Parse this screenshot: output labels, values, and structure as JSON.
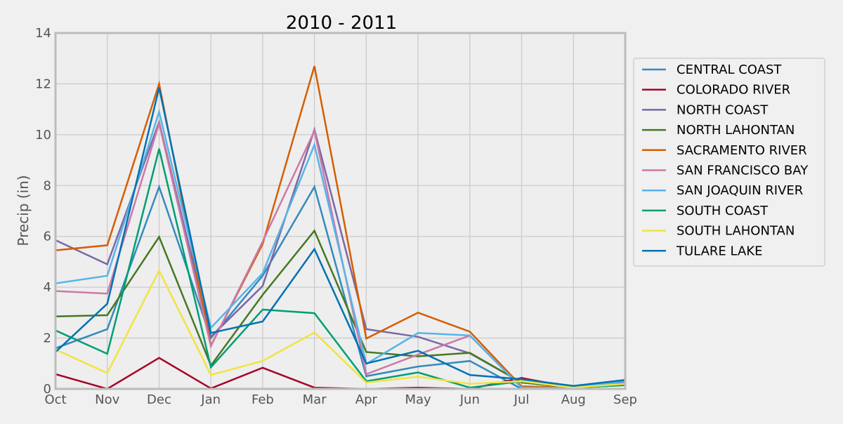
{
  "chart_data": {
    "type": "line",
    "title": "2010 - 2011",
    "xlabel": "",
    "ylabel": "Precip (in)",
    "categories": [
      "Oct",
      "Nov",
      "Dec",
      "Jan",
      "Feb",
      "Mar",
      "Apr",
      "May",
      "Jun",
      "Jul",
      "Aug",
      "Sep"
    ],
    "ylim": [
      0,
      14
    ],
    "yticks": [
      "0",
      "2",
      "4",
      "6",
      "8",
      "10",
      "12",
      "14"
    ],
    "grid": true,
    "legend_position": "right",
    "series": [
      {
        "name": "CENTRAL COAST",
        "color": "#348abd",
        "values": [
          1.6,
          2.35,
          7.95,
          2.0,
          4.45,
          7.95,
          0.5,
          0.88,
          1.1,
          0.0,
          0.05,
          0.3
        ]
      },
      {
        "name": "COLORADO RIVER",
        "color": "#a60628",
        "values": [
          0.58,
          0.0,
          1.22,
          0.02,
          0.83,
          0.05,
          0.0,
          0.05,
          0.0,
          0.43,
          0.05,
          0.2
        ]
      },
      {
        "name": "NORTH COAST",
        "color": "#7a68a6",
        "values": [
          5.85,
          4.9,
          10.5,
          2.05,
          4.05,
          10.2,
          2.35,
          2.05,
          1.4,
          0.25,
          0.05,
          0.25
        ]
      },
      {
        "name": "NORTH LAHONTAN",
        "color": "#467821",
        "values": [
          2.85,
          2.9,
          5.98,
          0.92,
          3.7,
          6.22,
          1.45,
          1.28,
          1.42,
          0.25,
          0.05,
          0.15
        ]
      },
      {
        "name": "SACRAMENTO RIVER",
        "color": "#d55e00",
        "values": [
          5.45,
          5.65,
          12.0,
          1.7,
          5.7,
          12.7,
          1.98,
          3.0,
          2.25,
          0.1,
          0.05,
          0.2
        ]
      },
      {
        "name": "SAN FRANCISCO BAY",
        "color": "#cc79a7",
        "values": [
          3.85,
          3.75,
          10.45,
          1.68,
          5.8,
          10.15,
          0.58,
          1.35,
          2.1,
          0.05,
          0.02,
          0.2
        ]
      },
      {
        "name": "SAN JOAQUIN RIVER",
        "color": "#56b4e9",
        "values": [
          4.15,
          4.45,
          10.9,
          2.4,
          4.55,
          9.6,
          0.98,
          2.2,
          2.1,
          0.05,
          0.05,
          0.3
        ]
      },
      {
        "name": "SOUTH COAST",
        "color": "#009e73",
        "values": [
          2.3,
          1.38,
          9.45,
          0.85,
          3.12,
          2.98,
          0.3,
          0.65,
          0.05,
          0.3,
          0.05,
          0.15
        ]
      },
      {
        "name": "SOUTH LAHONTAN",
        "color": "#f0e442",
        "values": [
          1.55,
          0.62,
          4.65,
          0.55,
          1.1,
          2.22,
          0.25,
          0.48,
          0.2,
          0.3,
          0.05,
          0.2
        ]
      },
      {
        "name": "TULARE LAKE",
        "color": "#0072b2",
        "values": [
          1.45,
          3.35,
          11.85,
          2.2,
          2.65,
          5.5,
          1.0,
          1.5,
          0.55,
          0.38,
          0.12,
          0.35
        ]
      }
    ]
  }
}
